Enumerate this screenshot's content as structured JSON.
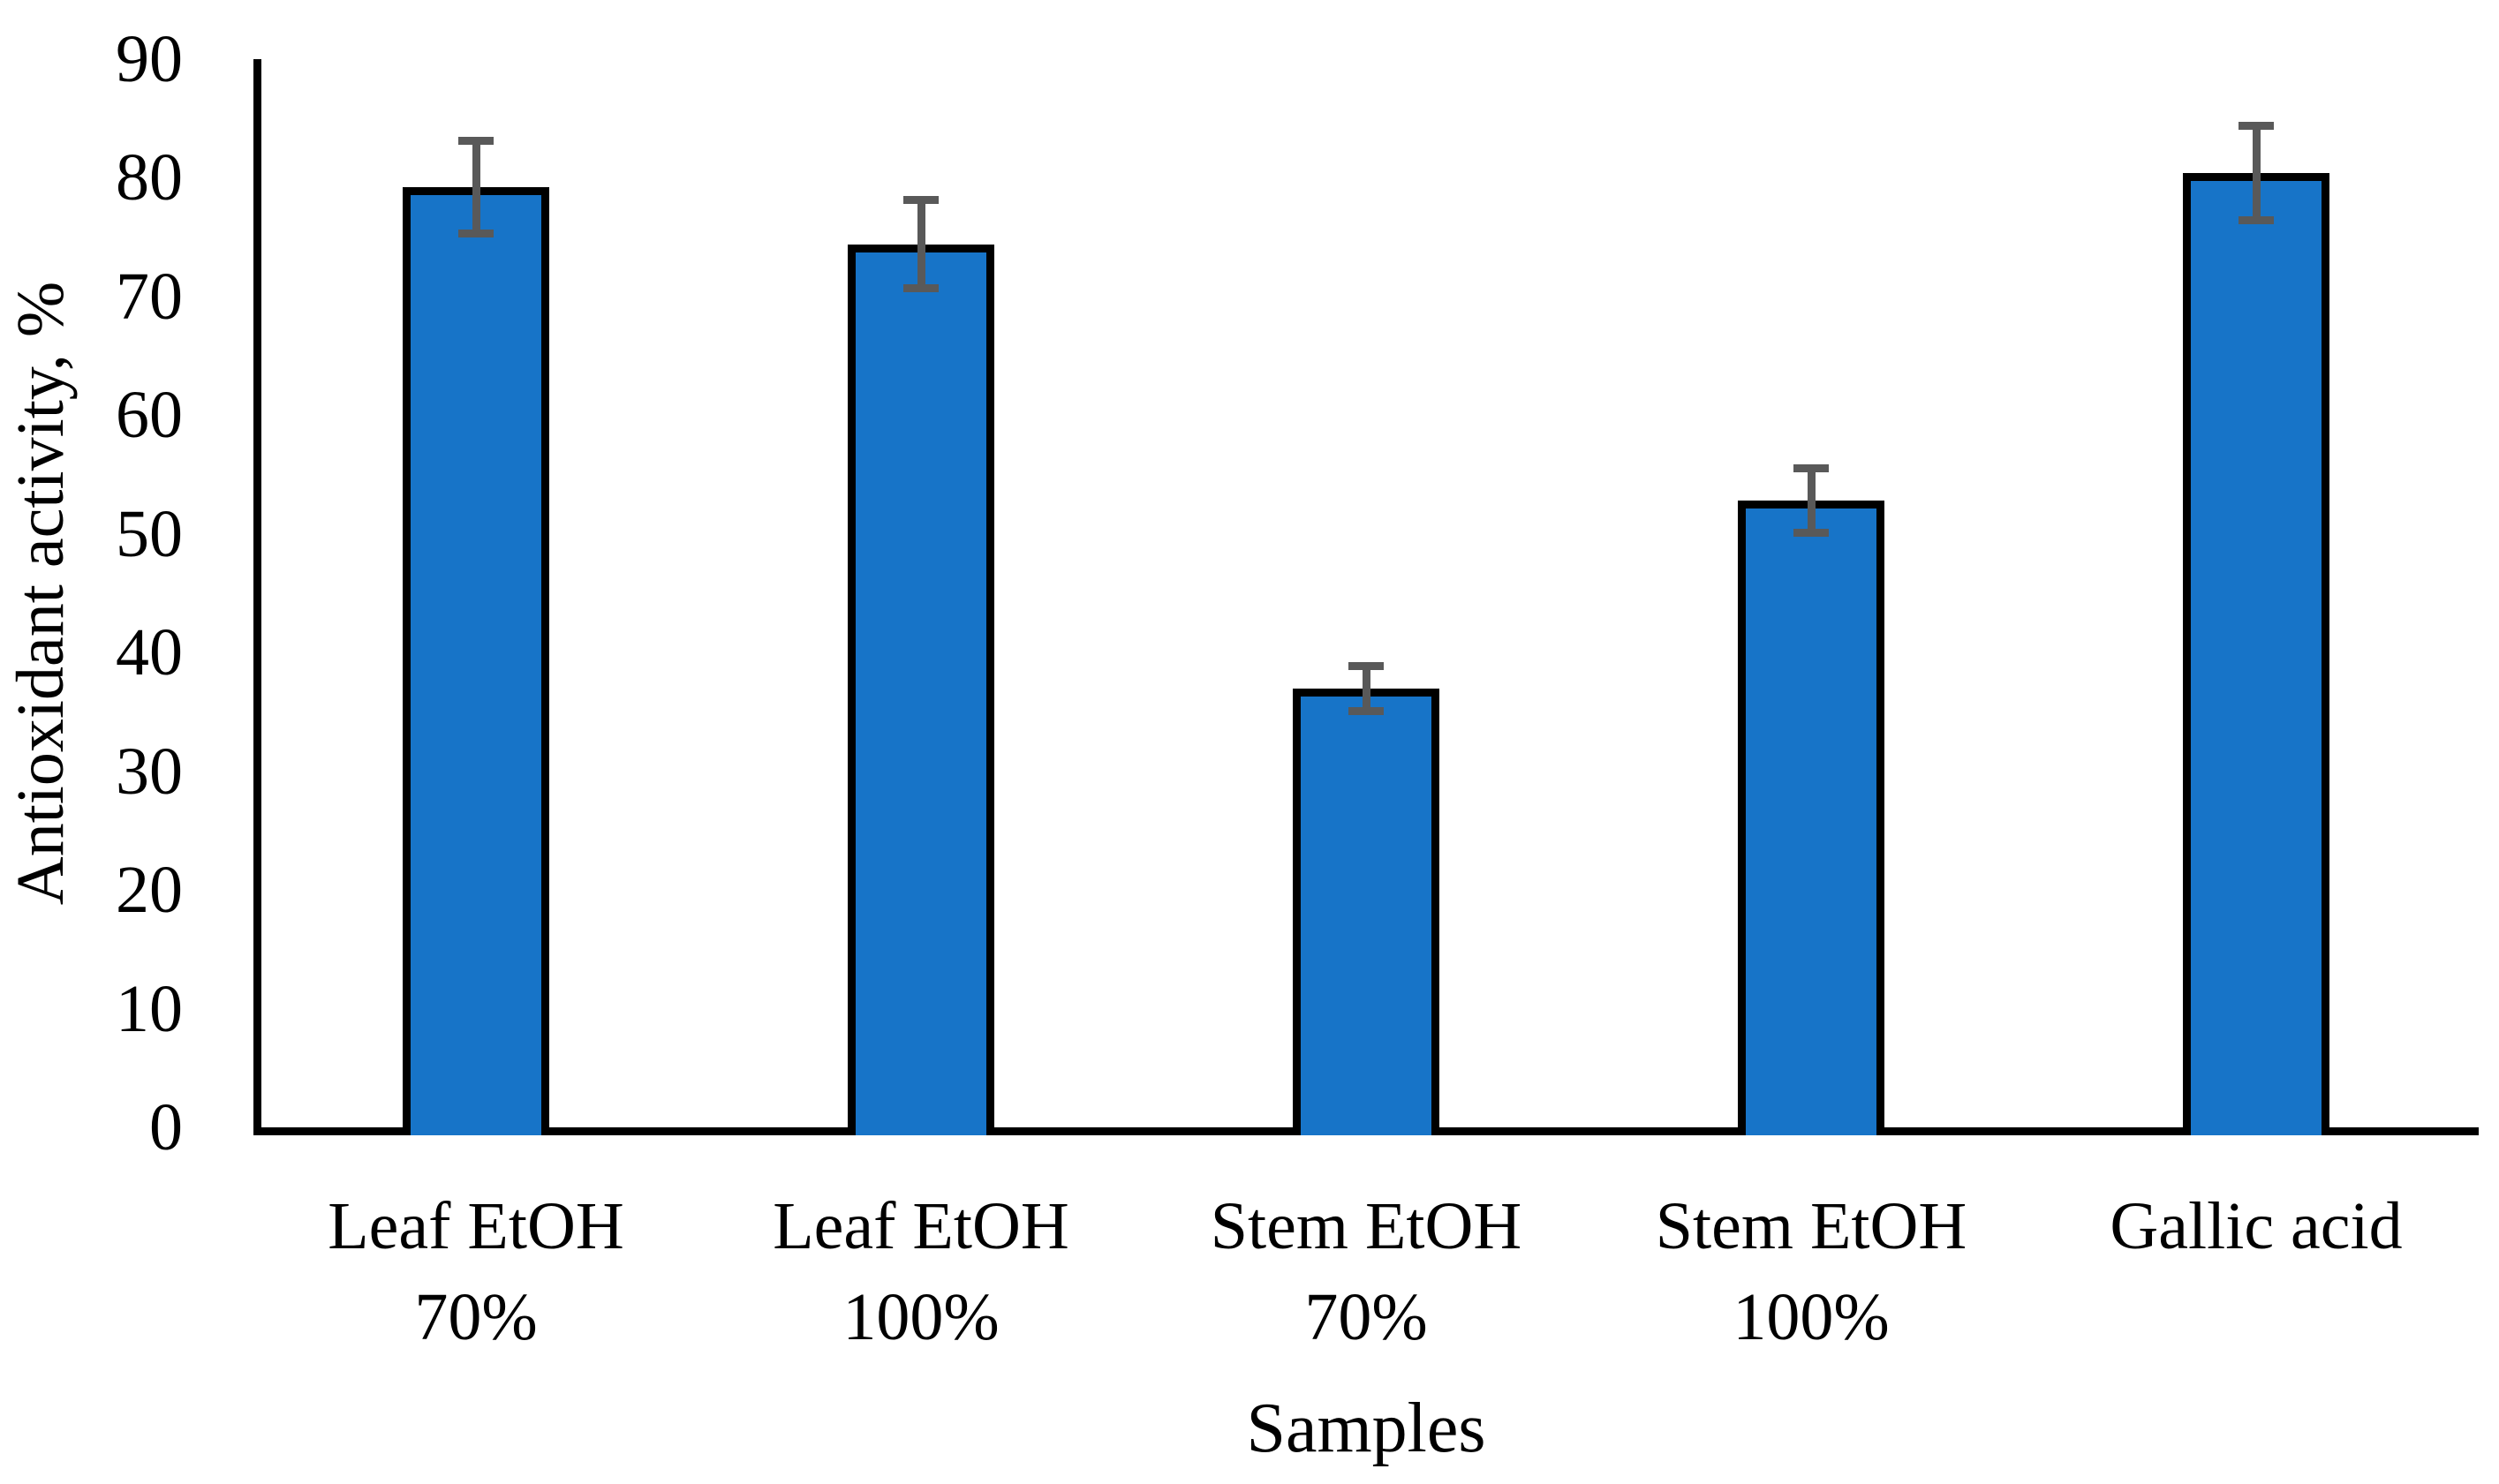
{
  "palette": {
    "background": "#ffffff",
    "bar_fill": "#1774C8",
    "bar_border": "#000000",
    "error_bar_color": "#595959",
    "axis_color": "#000000",
    "text_color": "#000000"
  },
  "chart_data": {
    "type": "bar",
    "title": "",
    "xlabel": "Samples",
    "ylabel": "Antioxidant activity, %",
    "categories": [
      [
        "Leaf EtOH",
        "70%"
      ],
      [
        "Leaf EtOH",
        "100%"
      ],
      [
        "Stem EtOH",
        "70%"
      ],
      [
        "Stem EtOH",
        "100%"
      ],
      [
        "Gallic acid"
      ]
    ],
    "values": [
      79.2,
      74.4,
      37.0,
      52.8,
      80.4
    ],
    "errors": [
      3.9,
      3.7,
      1.9,
      2.7,
      4.0
    ],
    "ylim": [
      0,
      90
    ],
    "yticks": [
      0,
      10,
      20,
      30,
      40,
      50,
      60,
      70,
      80,
      90
    ],
    "grid": false,
    "legend": null,
    "error_bars": true
  }
}
